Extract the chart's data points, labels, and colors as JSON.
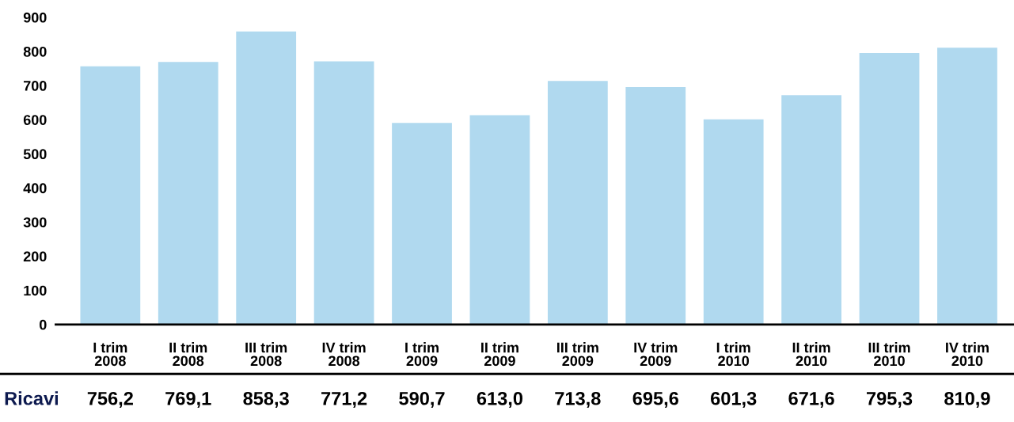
{
  "chart_data": {
    "type": "bar",
    "categories": [
      "I trim\n2008",
      "II trim\n2008",
      "III trim\n2008",
      "IV trim\n2008",
      "I trim\n2009",
      "II trim\n2009",
      "III trim\n2009",
      "IV trim\n2009",
      "I trim\n2010",
      "II trim\n2010",
      "III trim\n2010",
      "IV trim\n2010"
    ],
    "series": [
      {
        "name": "Ricavi",
        "color": "#b0d9ef",
        "values": [
          756.2,
          769.1,
          858.3,
          771.2,
          590.7,
          613.0,
          713.8,
          695.6,
          601.3,
          671.6,
          795.3,
          810.9
        ],
        "value_labels": [
          "756,2",
          "769,1",
          "858,3",
          "771,2",
          "590,7",
          "613,0",
          "713,8",
          "695,6",
          "601,3",
          "671,6",
          "795,3",
          "810,9"
        ]
      }
    ],
    "ylim": [
      0,
      900
    ],
    "yticks": [
      0,
      100,
      200,
      300,
      400,
      500,
      600,
      700,
      800,
      900
    ],
    "grid": false,
    "legend": false
  }
}
